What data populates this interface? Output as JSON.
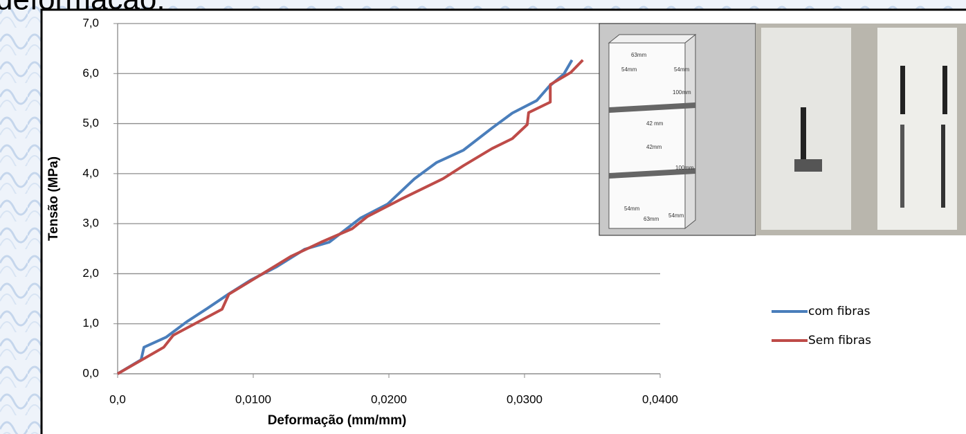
{
  "page_heading": "deformação:",
  "chart_data": {
    "type": "line",
    "xlabel": "Deformação (mm/mm)",
    "ylabel": "Tensão (MPa)",
    "xlim": [
      0,
      0.04
    ],
    "ylim": [
      0,
      7
    ],
    "xticks": [
      {
        "value": 0,
        "label": "0,0"
      },
      {
        "value": 0.01,
        "label": "0,0100"
      },
      {
        "value": 0.02,
        "label": "0,0200"
      },
      {
        "value": 0.03,
        "label": "0,0300"
      },
      {
        "value": 0.04,
        "label": "0,0400"
      }
    ],
    "yticks": [
      {
        "value": 0,
        "label": "0,0"
      },
      {
        "value": 1,
        "label": "1,0"
      },
      {
        "value": 2,
        "label": "2,0"
      },
      {
        "value": 3,
        "label": "3,0"
      },
      {
        "value": 4,
        "label": "4,0"
      },
      {
        "value": 5,
        "label": "5,0"
      },
      {
        "value": 6,
        "label": "6,0"
      },
      {
        "value": 7,
        "label": "7,0"
      }
    ],
    "grid": true,
    "legend": "right",
    "series": [
      {
        "name": "com fibras",
        "color": "#4a7ebb",
        "x": [
          0,
          0.00173,
          0.00194,
          0.00357,
          0.0051,
          0.00663,
          0.00816,
          0.0098,
          0.01173,
          0.0138,
          0.0156,
          0.0179,
          0.0199,
          0.0219,
          0.0235,
          0.0255,
          0.0276,
          0.0291,
          0.0309,
          0.0318,
          0.0329,
          0.0335
        ],
        "values": [
          0,
          0.28,
          0.53,
          0.73,
          1.04,
          1.31,
          1.59,
          1.87,
          2.14,
          2.49,
          2.63,
          3.11,
          3.39,
          3.9,
          4.22,
          4.47,
          4.91,
          5.21,
          5.46,
          5.74,
          5.99,
          6.27
        ]
      },
      {
        "name": "Sem fibras",
        "color": "#be4b48",
        "x": [
          0,
          0.0034,
          0.0041,
          0.0077,
          0.0082,
          0.0099,
          0.0128,
          0.015,
          0.0173,
          0.0184,
          0.0209,
          0.024,
          0.0255,
          0.0276,
          0.0291,
          0.0302,
          0.0303,
          0.0319,
          0.0319,
          0.0334,
          0.0343
        ],
        "values": [
          0,
          0.53,
          0.77,
          1.29,
          1.59,
          1.87,
          2.35,
          2.63,
          2.9,
          3.14,
          3.49,
          3.9,
          4.16,
          4.5,
          4.7,
          4.98,
          5.22,
          5.43,
          5.78,
          6.02,
          6.27
        ]
      }
    ]
  },
  "inset": {
    "labels": [
      "63mm",
      "54mm",
      "54mm",
      "100mm",
      "42 mm",
      "42mm",
      "100mm",
      "54mm",
      "54mm",
      "63mm"
    ]
  }
}
